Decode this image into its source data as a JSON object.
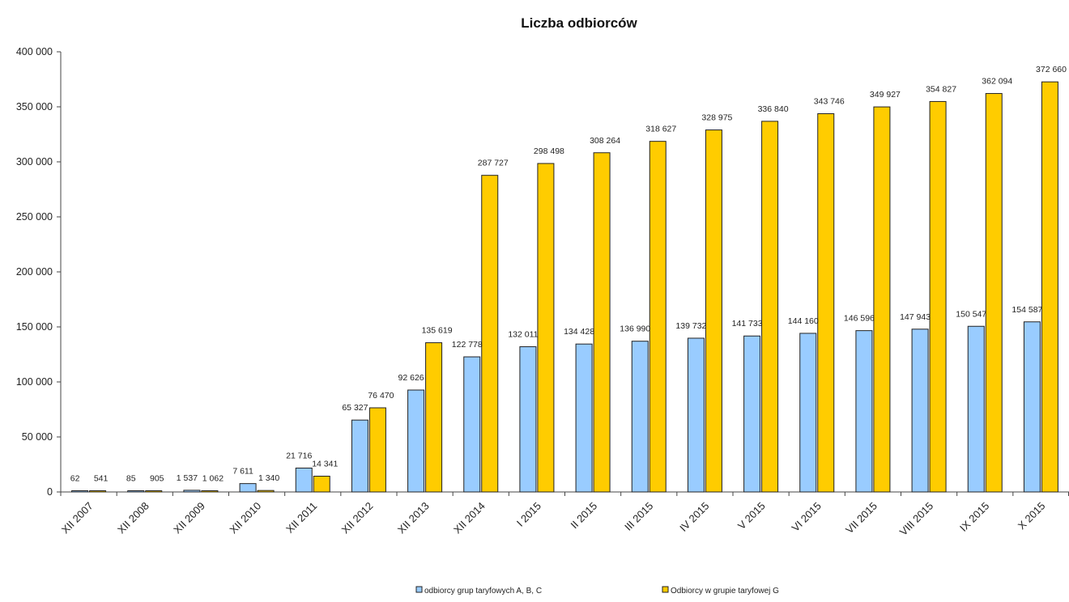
{
  "chart_data": {
    "type": "bar",
    "title": "Liczba odbiorców",
    "xlabel": "",
    "ylabel": "",
    "ylim": [
      0,
      400000
    ],
    "yticks": [
      0,
      50000,
      100000,
      150000,
      200000,
      250000,
      300000,
      350000,
      400000
    ],
    "ytick_labels": [
      "0",
      "50 000",
      "100 000",
      "150 000",
      "200 000",
      "250 000",
      "300 000",
      "350 000",
      "400 000"
    ],
    "grid": false,
    "legend_position": "bottom",
    "categories": [
      "XII 2007",
      "XII 2008",
      "XII 2009",
      "XII 2010",
      "XII 2011",
      "XII 2012",
      "XII 2013",
      "XII 2014",
      "I 2015",
      "II 2015",
      "III 2015",
      "IV 2015",
      "V 2015",
      "VI 2015",
      "VII 2015",
      "VIII 2015",
      "IX 2015",
      "X 2015"
    ],
    "series": [
      {
        "name": "odbiorcy grup taryfowych A, B, C",
        "color": "#99ccff",
        "values": [
          62,
          85,
          1537,
          7611,
          21716,
          65327,
          92626,
          122778,
          132011,
          134428,
          136990,
          139732,
          141733,
          144160,
          146596,
          147943,
          150547,
          154587
        ],
        "labels": [
          "62",
          "85",
          "1 537",
          "7 611",
          "21 716",
          "65 327",
          "92 626",
          "122 778",
          "132 011",
          "134 428",
          "136 990",
          "139 732",
          "141 733",
          "144 160",
          "146 596",
          "147 943",
          "150 547",
          "154 587"
        ]
      },
      {
        "name": "Odbiorcy w grupie taryfowej G",
        "color": "#ffcc00",
        "values": [
          541,
          905,
          1062,
          1340,
          14341,
          76470,
          135619,
          287727,
          298498,
          308264,
          318627,
          328975,
          336840,
          343746,
          349927,
          354827,
          362094,
          372660
        ],
        "labels": [
          "541",
          "905",
          "1 062",
          "1 340",
          "14 341",
          "76 470",
          "135 619",
          "287 727",
          "298 498",
          "308 264",
          "318 627",
          "328 975",
          "336 840",
          "343 746",
          "349 927",
          "354 827",
          "362 094",
          "372 660"
        ]
      }
    ]
  }
}
